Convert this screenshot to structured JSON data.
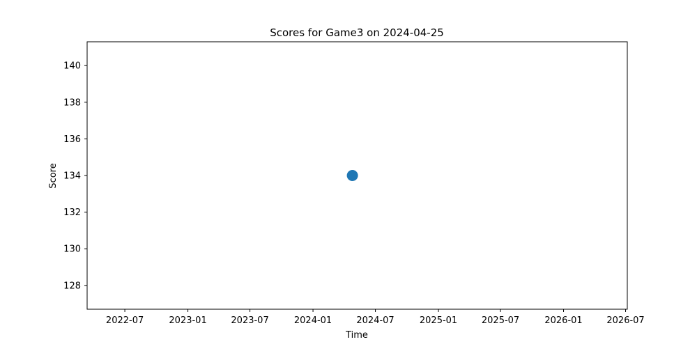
{
  "chart_data": {
    "type": "scatter",
    "title": "Scores for Game3 on 2024-04-25",
    "xlabel": "Time",
    "ylabel": "Score",
    "x_axis_type": "date",
    "xlim": [
      "2022-03-13",
      "2026-07-06"
    ],
    "ylim": [
      126.7,
      141.3
    ],
    "x_ticks": [
      "2022-07-01",
      "2023-01-01",
      "2023-07-01",
      "2024-01-01",
      "2024-07-01",
      "2025-01-01",
      "2025-07-01",
      "2026-01-01",
      "2026-07-01"
    ],
    "x_tick_labels": [
      "2022-07",
      "2023-01",
      "2023-07",
      "2024-01",
      "2024-07",
      "2025-01",
      "2025-07",
      "2026-01",
      "2026-07"
    ],
    "y_ticks": [
      128,
      130,
      132,
      134,
      136,
      138,
      140
    ],
    "y_tick_labels": [
      "128",
      "130",
      "132",
      "134",
      "136",
      "138",
      "140"
    ],
    "grid": false,
    "series": [
      {
        "color": "#1f77b4",
        "points": [
          {
            "x": "2024-04-25",
            "y": 134
          }
        ]
      }
    ]
  }
}
